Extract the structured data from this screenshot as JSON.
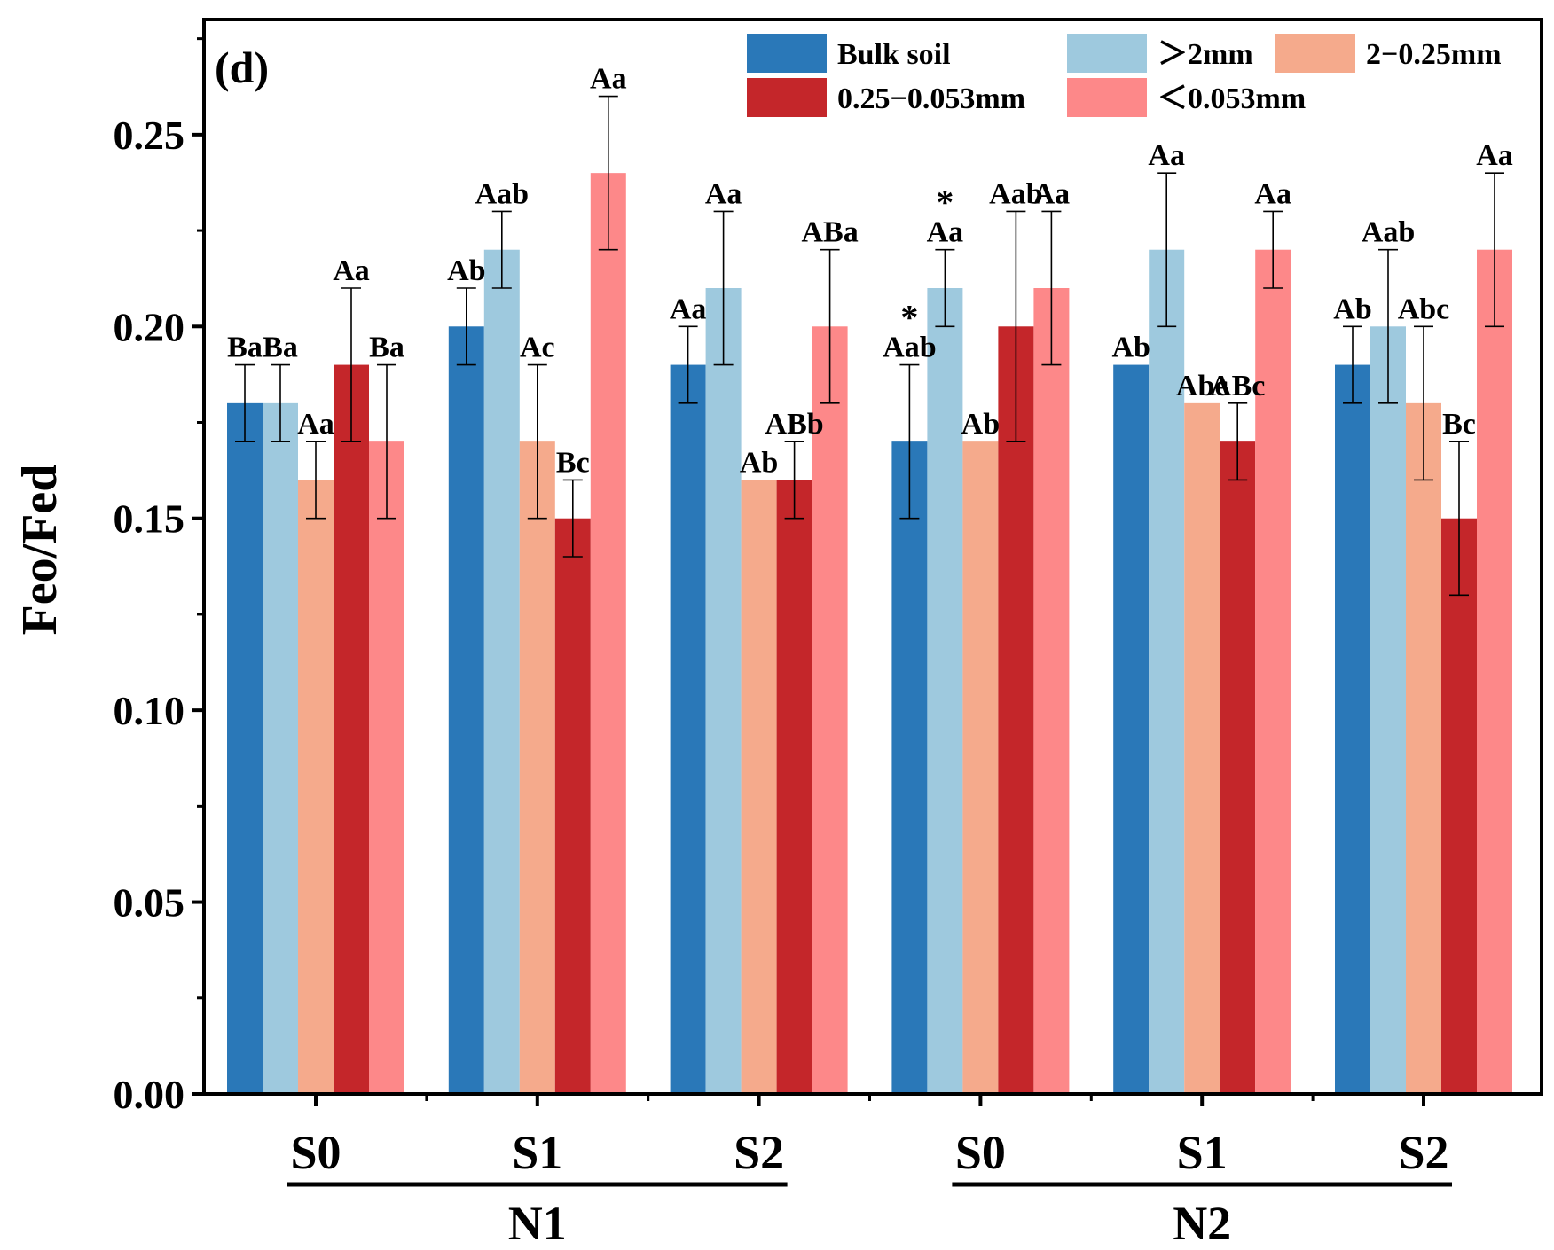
{
  "chart_data": {
    "type": "bar",
    "panel_label": "(d)",
    "ylabel": "Feo/Fed",
    "xlabel": "",
    "ylim": [
      0,
      0.28
    ],
    "yticks": [
      0.0,
      0.05,
      0.1,
      0.15,
      0.2,
      0.25
    ],
    "ytick_labels": [
      "0.00",
      "0.05",
      "0.10",
      "0.15",
      "0.20",
      "0.25"
    ],
    "categories": [
      "S0",
      "S1",
      "S2",
      "S0",
      "S1",
      "S2"
    ],
    "groups": [
      {
        "label": "N1",
        "categories": [
          0,
          1,
          2
        ]
      },
      {
        "label": "N2",
        "categories": [
          3,
          4,
          5
        ]
      }
    ],
    "legend": {
      "position": "top-right",
      "columns": 3
    },
    "series": [
      {
        "name": "Bulk soil",
        "color": "#2a78b8",
        "values": [
          0.18,
          0.2,
          0.19,
          0.17,
          0.19,
          0.19
        ],
        "errors": [
          0.01,
          0.01,
          0.01,
          0.02,
          0,
          0.01
        ],
        "labels": [
          "Ba",
          "Ab",
          "Aa",
          "Aab",
          "Ab",
          "Ab"
        ]
      },
      {
        "name": "＞2mm",
        "color": "#9ec9de",
        "values": [
          0.18,
          0.22,
          0.21,
          0.21,
          0.22,
          0.2
        ],
        "errors": [
          0.01,
          0.01,
          0.02,
          0.01,
          0.02,
          0.02
        ],
        "labels": [
          "Ba",
          "Aab",
          "Aa",
          "Aa",
          "Aa",
          "Aab"
        ]
      },
      {
        "name": "2−0.25mm",
        "color": "#f5aa8c",
        "values": [
          0.16,
          0.17,
          0.16,
          0.17,
          0.18,
          0.18
        ],
        "errors": [
          0.01,
          0.02,
          0,
          0,
          0,
          0.02
        ],
        "labels": [
          "Aa",
          "Ac",
          "Ab",
          "Ab",
          "Abc",
          "Abc"
        ]
      },
      {
        "name": "0.25−0.053mm",
        "color": "#c4262a",
        "values": [
          0.19,
          0.15,
          0.16,
          0.2,
          0.17,
          0.15
        ],
        "errors": [
          0.02,
          0.01,
          0.01,
          0.03,
          0.01,
          0.02
        ],
        "labels": [
          "Aa",
          "Bc",
          "ABb",
          "Aab",
          "ABc",
          "Bc"
        ]
      },
      {
        "name": "＜0.053mm",
        "color": "#fd8889",
        "values": [
          0.17,
          0.24,
          0.2,
          0.21,
          0.22,
          0.22
        ],
        "errors": [
          0.02,
          0.02,
          0.02,
          0.02,
          0.01,
          0.02
        ],
        "labels": [
          "Ba",
          "Aa",
          "ABa",
          "Aa",
          "Aa",
          "Aa"
        ]
      }
    ],
    "significance_marks": [
      {
        "series": 0,
        "category": 3,
        "mark": "*"
      },
      {
        "series": 1,
        "category": 3,
        "mark": "*"
      }
    ]
  }
}
